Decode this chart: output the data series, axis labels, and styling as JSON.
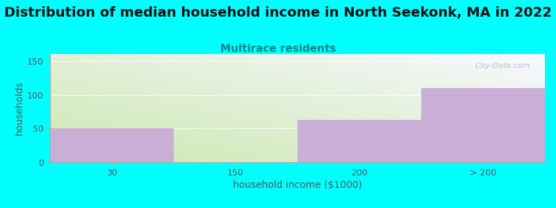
{
  "title": "Distribution of median household income in North Seekonk, MA in 2022",
  "subtitle": "Multirace residents",
  "xlabel": "household income ($1000)",
  "ylabel": "households",
  "categories": [
    "30",
    "150",
    "200",
    "> 200"
  ],
  "values": [
    50,
    0,
    63,
    110
  ],
  "bar_color": "#c9aed6",
  "bar_edgecolor": "#c9aed6",
  "title_fontsize": 14,
  "subtitle_fontsize": 11,
  "subtitle_color": "#008888",
  "axis_label_fontsize": 10,
  "tick_fontsize": 9,
  "ylim": [
    0,
    160
  ],
  "yticks": [
    0,
    50,
    100,
    150
  ],
  "background_color": "#00ffff",
  "plot_bg_color_bottom_left": "#cce8b0",
  "plot_bg_color_top_right": "#f8f8ff",
  "watermark": "City-Data.com",
  "watermark_color": "#b0b8c8"
}
